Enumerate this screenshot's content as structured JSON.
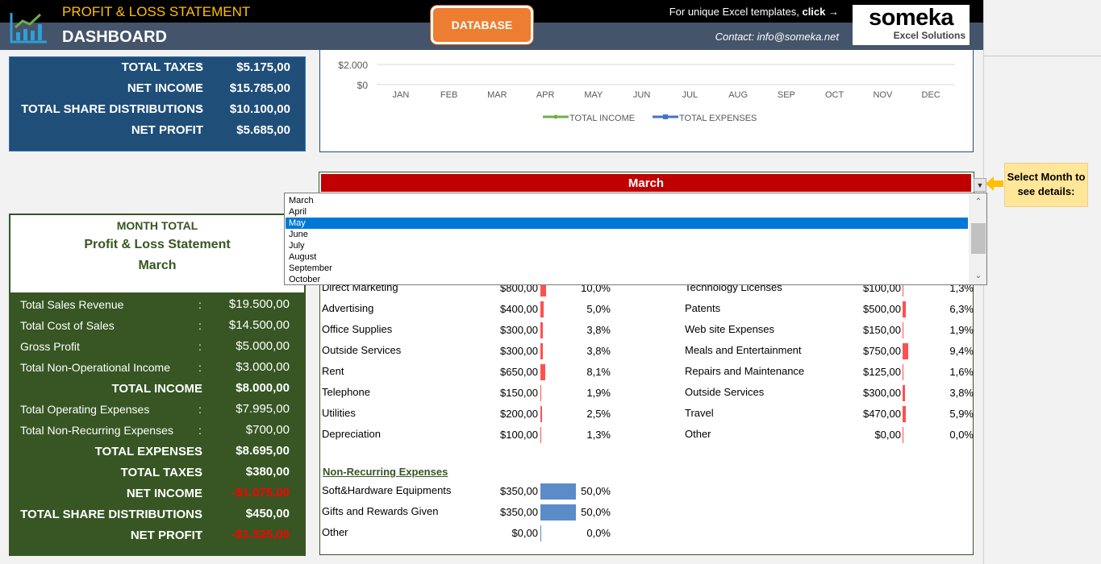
{
  "header": {
    "app_title": "PROFIT & LOSS STATEMENT",
    "dashboard_title": "DASHBOARD",
    "database_button": "DATABASE",
    "promo_text": "For unique Excel templates, ",
    "promo_link": "click →",
    "contact": "Contact: info@someka.net",
    "brand_name": "someka",
    "brand_sub": "Excel Solutions"
  },
  "summary_top": [
    {
      "label": "TOTAL TAXES",
      "colon": ":",
      "value": "$5.175,00"
    },
    {
      "label": "NET INCOME",
      "colon": ":",
      "value": "$15.785,00"
    },
    {
      "label": "TOTAL SHARE DISTRIBUTIONS",
      "colon": ":",
      "value": "$10.100,00"
    },
    {
      "label": "NET PROFIT",
      "colon": ":",
      "value": "$5.685,00"
    }
  ],
  "chart_data": {
    "type": "line",
    "categories": [
      "JAN",
      "FEB",
      "MAR",
      "APR",
      "MAY",
      "JUN",
      "JUL",
      "AUG",
      "SEP",
      "OCT",
      "NOV",
      "DEC"
    ],
    "y_ticks": [
      "$2.000",
      "$0"
    ],
    "series": [
      {
        "name": "TOTAL INCOME",
        "color": "#70ad47"
      },
      {
        "name": "TOTAL EXPENSES",
        "color": "#4472c4"
      }
    ]
  },
  "month_select": {
    "selected": "March",
    "hint": "Select Month to see details:",
    "options": [
      "March",
      "April",
      "May",
      "June",
      "July",
      "August",
      "September",
      "October"
    ],
    "highlighted": "May"
  },
  "month_total": {
    "heading": "MONTH TOTAL",
    "subheading": "Profit & Loss Statement",
    "month": "March",
    "rows": [
      {
        "label": "Total Sales Revenue",
        "colon": ":",
        "value": "$19.500,00"
      },
      {
        "label": "Total Cost of Sales",
        "colon": ":",
        "value": "$14.500,00"
      },
      {
        "label": "Gross Profit",
        "colon": ":",
        "value": "$5.000,00"
      },
      {
        "label": "Total Non-Operational Income",
        "colon": ":",
        "value": "$3.000,00"
      },
      {
        "label": "TOTAL INCOME",
        "colon": ":",
        "value": "$8.000,00"
      },
      {
        "label": "Total Operating Expenses",
        "colon": ":",
        "value": "$7.995,00"
      },
      {
        "label": "Total Non-Recurring Expenses",
        "colon": ":",
        "value": "$700,00"
      },
      {
        "label": "TOTAL EXPENSES",
        "colon": ":",
        "value": "$8.695,00"
      },
      {
        "label": "TOTAL TAXES",
        "colon": ":",
        "value": "$380,00"
      },
      {
        "label": "NET INCOME",
        "colon": ":",
        "value": "-$1.075,00"
      },
      {
        "label": "TOTAL SHARE DISTRIBUTIONS",
        "colon": ":",
        "value": "$450,00"
      },
      {
        "label": "NET PROFIT",
        "colon": ":",
        "value": "-$1.525,00"
      }
    ]
  },
  "operating_left": [
    {
      "name": "Direct Marketing",
      "amount": "$800,00",
      "pct": "10,0%",
      "share": 10.0
    },
    {
      "name": "Advertising",
      "amount": "$400,00",
      "pct": "5,0%",
      "share": 5.0
    },
    {
      "name": "Office Supplies",
      "amount": "$300,00",
      "pct": "3,8%",
      "share": 3.8
    },
    {
      "name": "Outside Services",
      "amount": "$300,00",
      "pct": "3,8%",
      "share": 3.8
    },
    {
      "name": "Rent",
      "amount": "$650,00",
      "pct": "8,1%",
      "share": 8.1
    },
    {
      "name": "Telephone",
      "amount": "$150,00",
      "pct": "1,9%",
      "share": 1.9
    },
    {
      "name": "Utilities",
      "amount": "$200,00",
      "pct": "2,5%",
      "share": 2.5
    },
    {
      "name": "Depreciation",
      "amount": "$100,00",
      "pct": "1,3%",
      "share": 1.3
    }
  ],
  "operating_right": [
    {
      "name": "Technology Licenses",
      "amount": "$100,00",
      "pct": "1,3%",
      "share": 1.3
    },
    {
      "name": "Patents",
      "amount": "$500,00",
      "pct": "6,3%",
      "share": 6.3
    },
    {
      "name": "Web site Expenses",
      "amount": "$150,00",
      "pct": "1,9%",
      "share": 1.9
    },
    {
      "name": "Meals and Entertainment",
      "amount": "$750,00",
      "pct": "9,4%",
      "share": 9.4
    },
    {
      "name": "Repairs and Maintenance",
      "amount": "$125,00",
      "pct": "1,6%",
      "share": 1.6
    },
    {
      "name": "Outside Services",
      "amount": "$300,00",
      "pct": "3,8%",
      "share": 3.8
    },
    {
      "name": "Travel",
      "amount": "$470,00",
      "pct": "5,9%",
      "share": 5.9
    },
    {
      "name": "Other",
      "amount": "$0,00",
      "pct": "0,0%",
      "share": 0.0
    }
  ],
  "non_recurring": {
    "title": "Non-Recurring Expenses",
    "items": [
      {
        "name": "Soft&Hardware Equipments",
        "amount": "$350,00",
        "pct": "50,0%",
        "share": 50.0
      },
      {
        "name": "Gifts and Rewards Given",
        "amount": "$350,00",
        "pct": "50,0%",
        "share": 50.0
      },
      {
        "name": "Other",
        "amount": "$0,00",
        "pct": "0,0%",
        "share": 0.0
      }
    ]
  },
  "colors": {
    "header_bg": "#000000",
    "header_band": "#44546a",
    "accent_orange": "#ed7d31",
    "blue_panel": "#1f4e79",
    "green_panel": "#375623",
    "month_bar": "#c00000",
    "op_bar": "#ff5050",
    "nre_bar": "#5b8cc8",
    "negative": "#ff0000"
  }
}
